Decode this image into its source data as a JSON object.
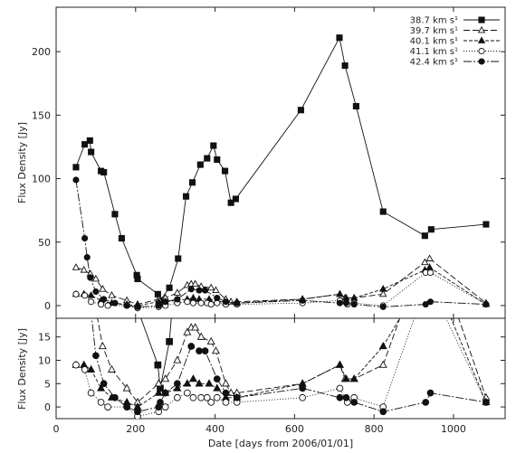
{
  "chart_data": [
    {
      "panel": "top",
      "type": "line",
      "xlabel": "",
      "ylabel": "Flux Density [Jy]",
      "xlim": [
        0,
        1130
      ],
      "ylim": [
        -10,
        235
      ],
      "yticks": [
        0,
        50,
        100,
        150,
        200
      ],
      "xticks": [
        0,
        200,
        400,
        600,
        800,
        1000
      ],
      "grid": false,
      "legend_position": "top-right",
      "series": [
        {
          "name": "38.7 km s¹",
          "marker": "square-filled",
          "dash": "",
          "x": [
            50,
            72,
            85,
            88,
            113,
            120,
            148,
            165,
            203,
            205,
            256,
            262,
            285,
            307,
            327,
            343,
            363,
            380,
            396,
            405,
            425,
            440,
            452,
            616,
            713,
            727,
            755,
            823,
            928,
            944,
            1082
          ],
          "y": [
            109,
            127,
            130,
            121,
            106,
            105,
            72,
            53,
            24,
            21,
            9,
            4,
            14,
            37,
            86,
            97,
            111,
            116,
            126,
            115,
            106,
            81,
            84,
            154,
            211,
            189,
            157,
            74,
            55,
            60,
            64
          ]
        },
        {
          "name": "39.7 km s¹",
          "marker": "triangle-open",
          "dash": "7,3",
          "x": [
            50,
            70,
            86,
            100,
            117,
            140,
            178,
            205,
            258,
            275,
            305,
            330,
            340,
            350,
            365,
            390,
            402,
            427,
            440,
            455,
            620,
            714,
            727,
            750,
            823,
            928,
            940,
            1082
          ],
          "y": [
            30,
            28,
            25,
            21,
            13,
            8,
            4,
            1,
            5,
            6,
            10,
            16,
            17,
            17,
            15,
            14,
            12,
            5,
            3,
            3,
            5,
            9,
            6,
            6,
            9,
            34,
            37,
            2
          ]
        },
        {
          "name": "40.1 km s¹",
          "marker": "triangle-filled",
          "dash": "4,2",
          "x": [
            50,
            70,
            88,
            113,
            140,
            178,
            205,
            258,
            275,
            305,
            330,
            345,
            360,
            385,
            405,
            427,
            455,
            620,
            714,
            730,
            750,
            823,
            928,
            940,
            1082
          ],
          "y": [
            9,
            9,
            8,
            4,
            2,
            1,
            0,
            3,
            3,
            4,
            5,
            6,
            5,
            5,
            4,
            2,
            2,
            5,
            9,
            6,
            6,
            13,
            28,
            30,
            1
          ]
        },
        {
          "name": "41.1 km s¹",
          "marker": "circle-open",
          "dash": "1,2",
          "x": [
            50,
            72,
            88,
            113,
            130,
            178,
            205,
            258,
            275,
            305,
            330,
            345,
            365,
            380,
            390,
            405,
            427,
            455,
            620,
            714,
            733,
            750,
            823,
            930,
            942,
            1082
          ],
          "y": [
            9,
            8,
            3,
            1,
            0,
            0,
            -2,
            -1,
            0,
            2,
            3,
            2,
            2,
            2,
            1,
            2,
            1,
            1,
            2,
            4,
            1,
            2,
            0,
            26,
            26,
            1
          ]
        },
        {
          "name": "42.4 km s¹",
          "marker": "circle-filled",
          "dash": "9,2,2,2",
          "x": [
            50,
            72,
            78,
            86,
            100,
            120,
            148,
            178,
            205,
            258,
            262,
            275,
            305,
            340,
            360,
            375,
            405,
            427,
            455,
            620,
            714,
            730,
            750,
            823,
            930,
            942,
            1082
          ],
          "y": [
            99,
            53,
            38,
            22,
            11,
            5,
            2,
            0,
            -1,
            0,
            1,
            3,
            5,
            13,
            12,
            12,
            6,
            3,
            2,
            4,
            2,
            2,
            1,
            -1,
            1,
            3,
            1
          ]
        }
      ]
    },
    {
      "panel": "bottom",
      "type": "line",
      "xlabel": "Date [days from 2006/01/01]",
      "ylabel": "Flux Density [Jy]",
      "xlim": [
        0,
        1130
      ],
      "ylim": [
        -2.5,
        19
      ],
      "yticks": [
        0,
        5,
        10,
        15
      ],
      "xticks": [
        0,
        200,
        400,
        600,
        800,
        1000
      ],
      "grid": false,
      "note": "zoom of the lower flux range of the same five series"
    }
  ]
}
